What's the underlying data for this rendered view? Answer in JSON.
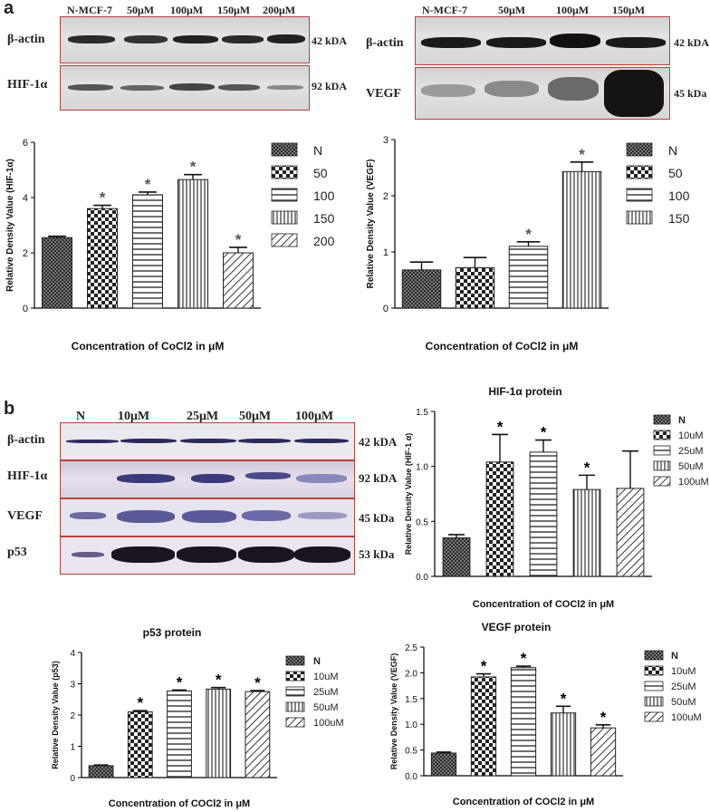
{
  "panel_a": {
    "label": "a",
    "blot_left": {
      "lanes": [
        "N-MCF-7",
        "50μM",
        "100μM",
        "150μM",
        "200μM"
      ],
      "rows": [
        {
          "name": "β-actin",
          "kda": "42 kDA"
        },
        {
          "name": "HIF-1α",
          "kda": "92 kDA"
        }
      ]
    },
    "blot_right": {
      "lanes": [
        "N-MCF-7",
        "50μM",
        "100μM",
        "150μM"
      ],
      "rows": [
        {
          "name": "β-actin",
          "kda": "42 kDA"
        },
        {
          "name": "VEGF",
          "kda": "45 kDa"
        }
      ]
    }
  },
  "panel_b": {
    "label": "b",
    "blot": {
      "lanes": [
        "N",
        "10μM",
        "25μM",
        "50μM",
        "100μM"
      ],
      "rows": [
        {
          "name": "β-actin",
          "kda": "42 kDA"
        },
        {
          "name": "HIF-1α",
          "kda": "92 kDA"
        },
        {
          "name": "VEGF",
          "kda": "45 kDa"
        },
        {
          "name": "p53",
          "kda": "53 kDa"
        }
      ]
    }
  },
  "chart_data": [
    {
      "type": "bar",
      "title": "",
      "ylabel": "Relative Density Value (HIF-1α)",
      "xlabel": "Concentration of CoCl2 in μM",
      "ylim": [
        0,
        6
      ],
      "yticks": [
        "0",
        "2",
        "4",
        "6"
      ],
      "legend": [
        "N",
        "50",
        "100",
        "150",
        "200"
      ],
      "values": [
        2.55,
        3.6,
        4.1,
        4.65,
        2.0
      ],
      "errors": [
        0.05,
        0.12,
        0.1,
        0.18,
        0.2
      ],
      "significant": [
        false,
        true,
        true,
        true,
        true
      ]
    },
    {
      "type": "bar",
      "title": "",
      "ylabel": "Relative Density Value (VEGF)",
      "xlabel": "Concentration of CoCl2 in μM",
      "ylim": [
        0,
        3
      ],
      "yticks": [
        "0",
        "1",
        "2",
        "3"
      ],
      "legend": [
        "N",
        "50",
        "100",
        "150"
      ],
      "values": [
        0.68,
        0.72,
        1.1,
        2.43
      ],
      "errors": [
        0.14,
        0.18,
        0.08,
        0.17
      ],
      "significant": [
        false,
        false,
        true,
        true
      ]
    },
    {
      "type": "bar",
      "title": "HIF-1α protein",
      "ylabel": "Relative Density Value (HIF-1 α)",
      "xlabel": "Concentration of COCl2 in μM",
      "ylim": [
        0,
        1.5
      ],
      "yticks": [
        "0.0",
        "0.5",
        "1.0",
        "1.5"
      ],
      "legend": [
        "N",
        "10uM",
        "25uM",
        "50uM",
        "100uM"
      ],
      "values": [
        0.35,
        1.04,
        1.13,
        0.79,
        0.8
      ],
      "errors": [
        0.03,
        0.25,
        0.11,
        0.13,
        0.34
      ],
      "significant": [
        false,
        true,
        true,
        true,
        false
      ]
    },
    {
      "type": "bar",
      "title": "p53 protein",
      "ylabel": "Relative Density Value (p53)",
      "xlabel": "Concentration of COCl2 in μM",
      "ylim": [
        0,
        4
      ],
      "yticks": [
        "0",
        "1",
        "2",
        "3",
        "4"
      ],
      "legend": [
        "N",
        "10uM",
        "25uM",
        "50uM",
        "100uM"
      ],
      "values": [
        0.38,
        2.1,
        2.77,
        2.83,
        2.75
      ],
      "errors": [
        0.02,
        0.04,
        0.03,
        0.05,
        0.03
      ],
      "significant": [
        false,
        true,
        true,
        true,
        true
      ]
    },
    {
      "type": "bar",
      "title": "VEGF protein",
      "ylabel": "Relative Density Value (VEGF)",
      "xlabel": "Concentration of COCl2 in μM",
      "ylim": [
        0,
        2.5
      ],
      "yticks": [
        "0.0",
        "0.5",
        "1.0",
        "1.5",
        "2.0",
        "2.5"
      ],
      "legend": [
        "N",
        "10uM",
        "25uM",
        "50uM",
        "100uM"
      ],
      "values": [
        0.44,
        1.92,
        2.1,
        1.22,
        0.93
      ],
      "errors": [
        0.02,
        0.06,
        0.03,
        0.13,
        0.06
      ],
      "significant": [
        false,
        true,
        true,
        true,
        true
      ]
    }
  ],
  "significance_mark": "*"
}
